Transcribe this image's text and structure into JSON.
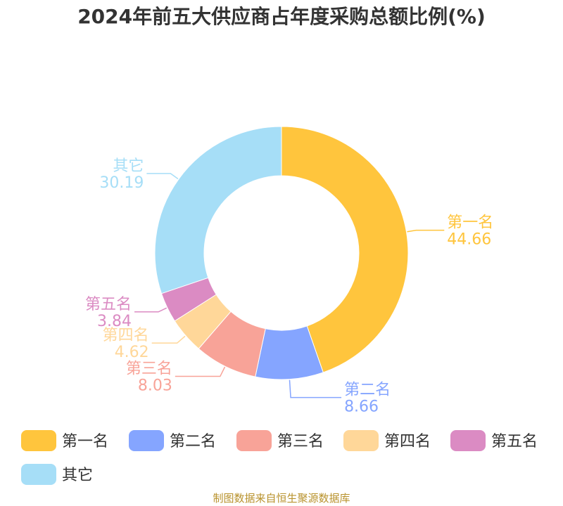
{
  "chart_data": {
    "type": "pie",
    "title": "2024年前五大供应商占年度采购总额比例(%)",
    "categories": [
      "第一名",
      "第二名",
      "第三名",
      "第四名",
      "第五名",
      "其它"
    ],
    "values": [
      44.66,
      8.66,
      8.03,
      4.62,
      3.84,
      30.19
    ],
    "value_labels": [
      "44.66",
      "8.66",
      "8.03",
      "4.62",
      "3.84",
      "30.19"
    ],
    "colors": [
      "#FFC53D",
      "#85A5FF",
      "#F8A398",
      "#FFD799",
      "#DB8BC3",
      "#A6DEF7"
    ],
    "donut": true,
    "legend_position": "bottom"
  },
  "footer": {
    "source": "制图数据来自恒生聚源数据库"
  }
}
